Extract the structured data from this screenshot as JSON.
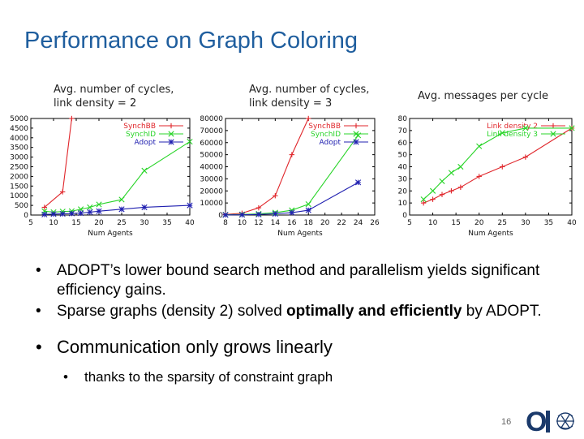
{
  "slide": {
    "title": "Performance on Graph Coloring",
    "page_number": "16"
  },
  "captions": [
    "Avg. number of cycles,\nlink density = 2",
    "Avg. number of cycles,\nlink density = 3",
    "Avg. messages per cycle"
  ],
  "bullets": {
    "b1": "ADOPT’s lower bound search method and parallelism yields significant efficiency gains.",
    "b2_pre": "Sparse graphs (density 2) solved ",
    "b2_bold": "optimally and efficiently",
    "b2_post": " by ADOPT.",
    "b3": "Communication only grows linearly",
    "b4": "thanks to the sparsity of constraint graph"
  },
  "chart_data": [
    {
      "type": "line",
      "xlabel": "Num Agents",
      "ylabel": "",
      "xlim": [
        5,
        40
      ],
      "ylim": [
        0,
        5000
      ],
      "xticks": [
        5,
        10,
        15,
        20,
        25,
        30,
        35,
        40
      ],
      "yticks": [
        0,
        500,
        1000,
        1500,
        2000,
        2500,
        3000,
        3500,
        4000,
        4500,
        5000
      ],
      "legend": "top-right",
      "series": [
        {
          "name": "SynchBB",
          "color": "#e0262b",
          "marker": "+",
          "x": [
            8,
            12,
            14
          ],
          "y": [
            400,
            1200,
            5000
          ]
        },
        {
          "name": "SynchID",
          "color": "#28d428",
          "marker": "x",
          "x": [
            8,
            10,
            12,
            14,
            16,
            18,
            20,
            25,
            30,
            40
          ],
          "y": [
            200,
            150,
            180,
            200,
            300,
            400,
            550,
            800,
            2300,
            3800
          ]
        },
        {
          "name": "Adopt",
          "color": "#2020b0",
          "marker": "*",
          "x": [
            8,
            10,
            12,
            14,
            16,
            18,
            20,
            25,
            30,
            40
          ],
          "y": [
            30,
            50,
            60,
            80,
            100,
            150,
            200,
            300,
            400,
            500
          ]
        }
      ]
    },
    {
      "type": "line",
      "xlabel": "Num Agents",
      "ylabel": "",
      "xlim": [
        8,
        26
      ],
      "ylim": [
        0,
        80000
      ],
      "xticks": [
        8,
        10,
        12,
        14,
        16,
        18,
        20,
        22,
        24,
        26
      ],
      "yticks": [
        0,
        10000,
        20000,
        30000,
        40000,
        50000,
        60000,
        70000,
        80000
      ],
      "legend": "top-right",
      "series": [
        {
          "name": "SynchBB",
          "color": "#e0262b",
          "marker": "+",
          "x": [
            8,
            10,
            12,
            14,
            16,
            18
          ],
          "y": [
            500,
            1500,
            6000,
            16000,
            50000,
            80000
          ]
        },
        {
          "name": "SynchID",
          "color": "#28d428",
          "marker": "x",
          "x": [
            8,
            10,
            12,
            14,
            16,
            18,
            24
          ],
          "y": [
            300,
            500,
            1000,
            2000,
            4000,
            9000,
            66000
          ]
        },
        {
          "name": "Adopt",
          "color": "#2020b0",
          "marker": "*",
          "x": [
            8,
            10,
            12,
            14,
            16,
            18,
            24
          ],
          "y": [
            100,
            200,
            500,
            1000,
            2000,
            4000,
            27000
          ]
        }
      ]
    },
    {
      "type": "line",
      "xlabel": "Num Agents",
      "ylabel": "",
      "xlim": [
        5,
        40
      ],
      "ylim": [
        0,
        80
      ],
      "xticks": [
        5,
        10,
        15,
        20,
        25,
        30,
        35,
        40
      ],
      "yticks": [
        0,
        10,
        20,
        30,
        40,
        50,
        60,
        70,
        80
      ],
      "ytick_labels": [
        "0",
        "10",
        "20",
        "30",
        "40",
        "50",
        "60",
        "70",
        "80"
      ],
      "legend": "top-right",
      "series": [
        {
          "name": "Link density 2",
          "color": "#e0262b",
          "marker": "+",
          "x": [
            8,
            10,
            12,
            14,
            16,
            20,
            25,
            30,
            40
          ],
          "y": [
            10,
            13,
            17,
            20,
            23,
            32,
            40,
            48,
            72
          ]
        },
        {
          "name": "Link density 3",
          "color": "#28d428",
          "marker": "x",
          "x": [
            8,
            10,
            12,
            14,
            16,
            20,
            25,
            30,
            40
          ],
          "y": [
            13,
            20,
            28,
            35,
            40,
            57,
            68,
            72,
            72
          ]
        }
      ]
    }
  ]
}
